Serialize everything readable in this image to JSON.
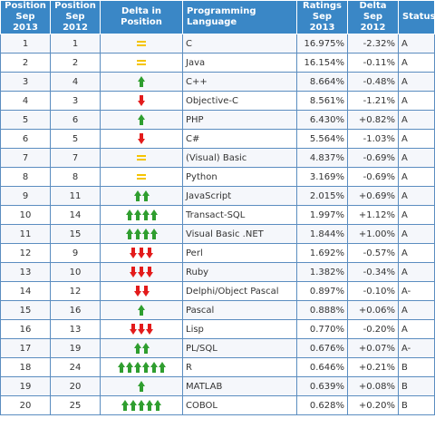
{
  "headers": {
    "pos2013": "Position Sep 2013",
    "pos2012": "Position Sep 2012",
    "delta_pos": "Delta in Position",
    "language": "Programming Language",
    "ratings": "Ratings Sep 2013",
    "delta": "Delta Sep 2012",
    "status": "Status"
  },
  "colors": {
    "header_bg": "#3a87c6",
    "up": "#2f9e2f",
    "down": "#e31b1b",
    "same": "#f5c400"
  },
  "rows": [
    {
      "pos2013": "1",
      "pos2012": "1",
      "change": 0,
      "language": "C",
      "ratings": "16.975%",
      "delta": "-2.32%",
      "status": "A"
    },
    {
      "pos2013": "2",
      "pos2012": "2",
      "change": 0,
      "language": "Java",
      "ratings": "16.154%",
      "delta": "-0.11%",
      "status": "A"
    },
    {
      "pos2013": "3",
      "pos2012": "4",
      "change": 1,
      "language": "C++",
      "ratings": "8.664%",
      "delta": "-0.48%",
      "status": "A"
    },
    {
      "pos2013": "4",
      "pos2012": "3",
      "change": -1,
      "language": "Objective-C",
      "ratings": "8.561%",
      "delta": "-1.21%",
      "status": "A"
    },
    {
      "pos2013": "5",
      "pos2012": "6",
      "change": 1,
      "language": "PHP",
      "ratings": "6.430%",
      "delta": "+0.82%",
      "status": "A"
    },
    {
      "pos2013": "6",
      "pos2012": "5",
      "change": -1,
      "language": "C#",
      "ratings": "5.564%",
      "delta": "-1.03%",
      "status": "A"
    },
    {
      "pos2013": "7",
      "pos2012": "7",
      "change": 0,
      "language": "(Visual) Basic",
      "ratings": "4.837%",
      "delta": "-0.69%",
      "status": "A"
    },
    {
      "pos2013": "8",
      "pos2012": "8",
      "change": 0,
      "language": "Python",
      "ratings": "3.169%",
      "delta": "-0.69%",
      "status": "A"
    },
    {
      "pos2013": "9",
      "pos2012": "11",
      "change": 2,
      "language": "JavaScript",
      "ratings": "2.015%",
      "delta": "+0.69%",
      "status": "A"
    },
    {
      "pos2013": "10",
      "pos2012": "14",
      "change": 4,
      "language": "Transact-SQL",
      "ratings": "1.997%",
      "delta": "+1.12%",
      "status": "A"
    },
    {
      "pos2013": "11",
      "pos2012": "15",
      "change": 4,
      "language": "Visual Basic .NET",
      "ratings": "1.844%",
      "delta": "+1.00%",
      "status": "A"
    },
    {
      "pos2013": "12",
      "pos2012": "9",
      "change": -3,
      "language": "Perl",
      "ratings": "1.692%",
      "delta": "-0.57%",
      "status": "A"
    },
    {
      "pos2013": "13",
      "pos2012": "10",
      "change": -3,
      "language": "Ruby",
      "ratings": "1.382%",
      "delta": "-0.34%",
      "status": "A"
    },
    {
      "pos2013": "14",
      "pos2012": "12",
      "change": -2,
      "language": "Delphi/Object Pascal",
      "ratings": "0.897%",
      "delta": "-0.10%",
      "status": "A-"
    },
    {
      "pos2013": "15",
      "pos2012": "16",
      "change": 1,
      "language": "Pascal",
      "ratings": "0.888%",
      "delta": "+0.06%",
      "status": "A"
    },
    {
      "pos2013": "16",
      "pos2012": "13",
      "change": -3,
      "language": "Lisp",
      "ratings": "0.770%",
      "delta": "-0.20%",
      "status": "A"
    },
    {
      "pos2013": "17",
      "pos2012": "19",
      "change": 2,
      "language": "PL/SQL",
      "ratings": "0.676%",
      "delta": "+0.07%",
      "status": "A-"
    },
    {
      "pos2013": "18",
      "pos2012": "24",
      "change": 6,
      "language": "R",
      "ratings": "0.646%",
      "delta": "+0.21%",
      "status": "B"
    },
    {
      "pos2013": "19",
      "pos2012": "20",
      "change": 1,
      "language": "MATLAB",
      "ratings": "0.639%",
      "delta": "+0.08%",
      "status": "B"
    },
    {
      "pos2013": "20",
      "pos2012": "25",
      "change": 5,
      "language": "COBOL",
      "ratings": "0.628%",
      "delta": "+0.20%",
      "status": "B"
    }
  ]
}
